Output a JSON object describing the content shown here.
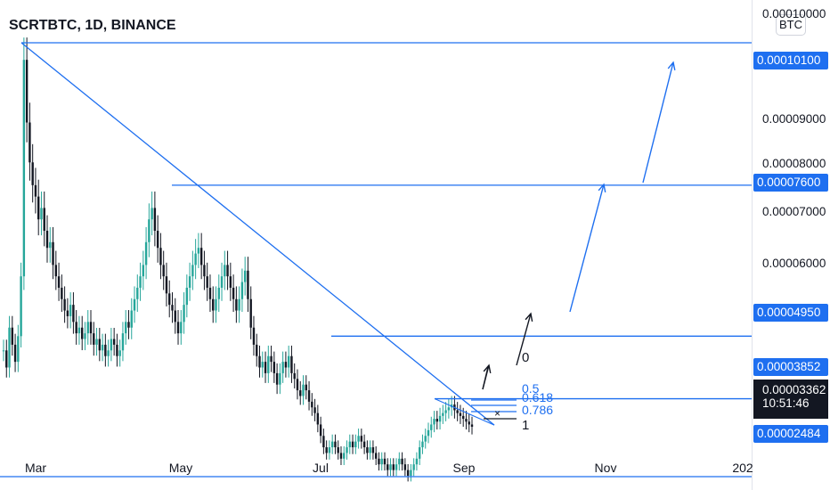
{
  "header": {
    "title": "SCRTBTC, 1D, BINANCE"
  },
  "price_axis": {
    "unit": "BTC",
    "ticks": [
      "0.00010000",
      "0.00009000",
      "0.00008000",
      "0.00007000",
      "0.00006000"
    ],
    "tick_values": [
      0.0001,
      9e-05,
      8e-05,
      7e-05,
      6e-05
    ]
  },
  "time_axis": {
    "labels": [
      "Mar",
      "May",
      "Jul",
      "Sep",
      "Nov",
      "202"
    ]
  },
  "price_tags": [
    {
      "label": "0.00010100",
      "value": 0.000101
    },
    {
      "label": "0.00007600",
      "value": 7.6e-05
    },
    {
      "label": "0.00004950",
      "value": 4.95e-05
    },
    {
      "label": "0.00003852",
      "value": 3.852e-05
    },
    {
      "label": "0.00002484",
      "value": 2.484e-05
    }
  ],
  "last_price": {
    "value": "0.00003362",
    "countdown": "10:51:46"
  },
  "fib_labels": [
    "0",
    "0.5",
    "0.618",
    "0.786",
    "1"
  ],
  "colors": {
    "drawing": "#1e6ff0",
    "candle_up": "#26a69a",
    "candle_down": "#131722",
    "price_tag": "#1e6ff0"
  },
  "chart_data": {
    "type": "candlestick",
    "title": "SCRTBTC, 1D, BINANCE",
    "x_labels": [
      "Mar",
      "May",
      "Jul",
      "Sep",
      "Nov",
      "202"
    ],
    "ylim": [
      2.25e-05,
      0.0001085
    ],
    "horizontal_levels": [
      0.000101,
      7.6e-05,
      4.95e-05,
      3.852e-05,
      2.484e-05
    ],
    "close_series": [
      4.7e-05,
      4.4e-05,
      5.1e-05,
      4.8e-05,
      4.5e-05,
      4.95e-05,
      6e-05,
      9.8e-05,
      8.7e-05,
      8e-05,
      7.6e-05,
      7.4e-05,
      7e-05,
      7.2e-05,
      6.8e-05,
      6.5e-05,
      6.6e-05,
      6.2e-05,
      6e-05,
      5.8e-05,
      5.6e-05,
      5.4e-05,
      5.3e-05,
      5.5e-05,
      5.2e-05,
      5e-05,
      5.1e-05,
      4.9e-05,
      5e-05,
      5.2e-05,
      5e-05,
      4.8e-05,
      4.9e-05,
      4.7e-05,
      4.8e-05,
      4.6e-05,
      4.7e-05,
      4.9e-05,
      4.8e-05,
      4.6e-05,
      4.7e-05,
      5e-05,
      5.2e-05,
      5.1e-05,
      5.4e-05,
      5.6e-05,
      5.8e-05,
      6e-05,
      6.2e-05,
      6.6e-05,
      7e-05,
      7.2e-05,
      6.8e-05,
      6.5e-05,
      6.2e-05,
      6e-05,
      5.7e-05,
      5.5e-05,
      5.4e-05,
      5.2e-05,
      5e-05,
      5.2e-05,
      5.5e-05,
      5.8e-05,
      6e-05,
      6.2e-05,
      6.4e-05,
      6.5e-05,
      6.2e-05,
      6e-05,
      5.8e-05,
      5.6e-05,
      5.4e-05,
      5.6e-05,
      5.8e-05,
      6e-05,
      6.2e-05,
      6e-05,
      5.8e-05,
      5.6e-05,
      5.4e-05,
      5.6e-05,
      5.9e-05,
      6.1e-05,
      5.6e-05,
      5.1e-05,
      4.8e-05,
      4.6e-05,
      4.4e-05,
      4.5e-05,
      4.3e-05,
      4.6e-05,
      4.5e-05,
      4.3e-05,
      4.1e-05,
      4.3e-05,
      4.5e-05,
      4.4e-05,
      4.6e-05,
      4.3e-05,
      4.2e-05,
      4e-05,
      3.9e-05,
      4.1e-05,
      4e-05,
      3.8e-05,
      3.7e-05,
      3.6e-05,
      3.4e-05,
      3.2e-05,
      3e-05,
      2.9e-05,
      3e-05,
      3.1e-05,
      3e-05,
      2.9e-05,
      2.8e-05,
      2.9e-05,
      3e-05,
      3.1e-05,
      3e-05,
      3.1e-05,
      3.2e-05,
      3.1e-05,
      3e-05,
      2.9e-05,
      3e-05,
      2.9e-05,
      2.8e-05,
      2.7e-05,
      2.8e-05,
      2.7e-05,
      2.6e-05,
      2.7e-05,
      2.6e-05,
      2.7e-05,
      2.8e-05,
      2.7e-05,
      2.6e-05,
      2.5e-05,
      2.6e-05,
      2.7e-05,
      2.8e-05,
      3e-05,
      3.1e-05,
      3.2e-05,
      3.3e-05,
      3.4e-05,
      3.5e-05,
      3.45e-05,
      3.55e-05,
      3.6e-05,
      3.65e-05,
      3.7e-05,
      3.75e-05,
      3.65e-05,
      3.6e-05,
      3.55e-05,
      3.5e-05,
      3.45e-05,
      3.4e-05,
      3.36e-05
    ]
  }
}
